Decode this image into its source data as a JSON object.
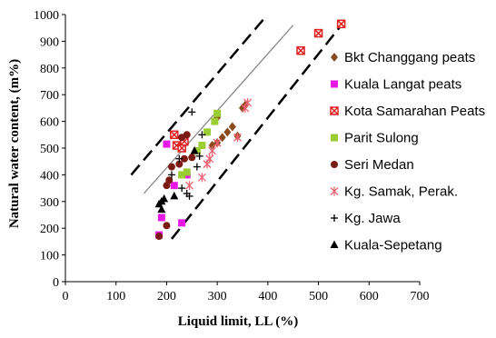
{
  "chart_data": {
    "type": "scatter",
    "title": "",
    "xlabel": "Liquid limit, LL (%)",
    "ylabel": "Natural water content, (m%)",
    "xlim": [
      0,
      700
    ],
    "ylim": [
      0,
      1000
    ],
    "xticks": [
      0,
      100,
      200,
      300,
      400,
      500,
      600,
      700
    ],
    "yticks": [
      0,
      100,
      200,
      300,
      400,
      500,
      600,
      700,
      800,
      900,
      1000
    ],
    "grid": false,
    "legend_position": "right",
    "series": [
      {
        "name": "Bkt Changgang peats",
        "marker": "diamond",
        "color": "#8B4A1C",
        "points": [
          [
            290,
            510
          ],
          [
            300,
            520
          ],
          [
            310,
            540
          ],
          [
            320,
            560
          ],
          [
            330,
            580
          ],
          [
            340,
            545
          ],
          [
            350,
            650
          ],
          [
            355,
            660
          ],
          [
            300,
            615
          ]
        ]
      },
      {
        "name": "Kuala Langat peats",
        "marker": "square",
        "color": "#E619E6",
        "points": [
          [
            185,
            175
          ],
          [
            190,
            240
          ],
          [
            200,
            515
          ],
          [
            215,
            360
          ],
          [
            230,
            220
          ],
          [
            240,
            400
          ]
        ]
      },
      {
        "name": "Kota Samarahan Peats",
        "marker": "square-x",
        "color": "#E02020",
        "points": [
          [
            215,
            550
          ],
          [
            220,
            510
          ],
          [
            230,
            500
          ],
          [
            235,
            525
          ],
          [
            465,
            865
          ],
          [
            500,
            930
          ],
          [
            545,
            965
          ]
        ]
      },
      {
        "name": "Parit Sulong",
        "marker": "square",
        "color": "#9ACD32",
        "points": [
          [
            240,
            410
          ],
          [
            260,
            490
          ],
          [
            270,
            510
          ],
          [
            280,
            560
          ],
          [
            300,
            630
          ],
          [
            295,
            600
          ],
          [
            230,
            400
          ]
        ]
      },
      {
        "name": "Seri Medan",
        "marker": "circle",
        "color": "#7B1B14",
        "points": [
          [
            185,
            170
          ],
          [
            200,
            210
          ],
          [
            200,
            360
          ],
          [
            205,
            380
          ],
          [
            210,
            430
          ],
          [
            225,
            440
          ],
          [
            230,
            540
          ],
          [
            235,
            460
          ],
          [
            240,
            550
          ],
          [
            250,
            465
          ]
        ]
      },
      {
        "name": "Kg. Samak, Perak.",
        "marker": "asterisk",
        "color": "#F06070",
        "points": [
          [
            245,
            360
          ],
          [
            270,
            390
          ],
          [
            280,
            440
          ],
          [
            285,
            460
          ],
          [
            290,
            490
          ],
          [
            300,
            520
          ],
          [
            340,
            540
          ],
          [
            355,
            650
          ],
          [
            360,
            670
          ]
        ]
      },
      {
        "name": "Kg. Jawa",
        "marker": "plus",
        "color": "#000000",
        "points": [
          [
            230,
            350
          ],
          [
            240,
            330
          ],
          [
            245,
            320
          ],
          [
            250,
            635
          ],
          [
            260,
            430
          ],
          [
            265,
            470
          ],
          [
            270,
            550
          ],
          [
            210,
            400
          ],
          [
            225,
            460
          ]
        ]
      },
      {
        "name": "Kuala-Sepetang",
        "marker": "triangle",
        "color": "#000000",
        "points": [
          [
            185,
            290
          ],
          [
            190,
            300
          ],
          [
            190,
            270
          ],
          [
            195,
            310
          ],
          [
            215,
            320
          ],
          [
            255,
            490
          ]
        ]
      }
    ],
    "lines": [
      {
        "style": "solid",
        "color": "#808080",
        "from": [
          155,
          330
        ],
        "to": [
          450,
          960
        ]
      },
      {
        "style": "dashed",
        "color": "#000000",
        "from": [
          130,
          400
        ],
        "to": [
          395,
          990
        ]
      },
      {
        "style": "dashed",
        "color": "#000000",
        "from": [
          210,
          160
        ],
        "to": [
          545,
          960
        ]
      }
    ]
  }
}
